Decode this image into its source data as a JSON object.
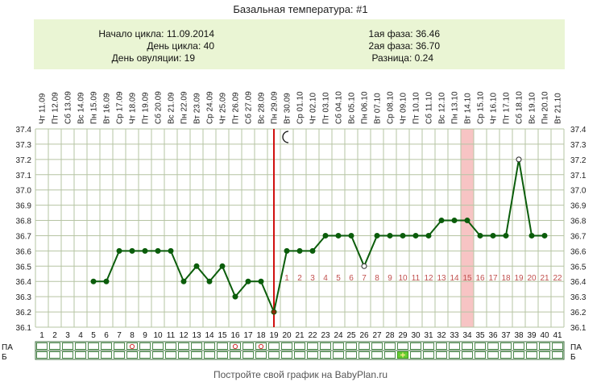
{
  "title": "Базальная температура: #1",
  "info": {
    "cycle_start_label": "Начало цикла: 11.09.2014",
    "cycle_day_label": "День цикла: 40",
    "ovulation_day_label": "День овуляции: 19",
    "phase1_label": "1ая фаза: 36.46",
    "phase2_label": "2ая фаза: 36.70",
    "difference_label": "Разница: 0.24"
  },
  "footer": "Постройте свой график на BabyPlan.ru",
  "row_labels": {
    "pa": "ПА",
    "b": "Б"
  },
  "colors": {
    "line": "#0b5d0b",
    "ovulation_line": "#d01010",
    "highlight": "#f7c4c4",
    "grid": "#b6c4a3",
    "phase2_numbers": "#c0504d",
    "b_mark": "#66cc33"
  },
  "chart_data": {
    "type": "line",
    "title": "Базальная температура: #1",
    "ylim": [
      36.1,
      37.4
    ],
    "y_ticks": [
      "36.1",
      "36.2",
      "36.3",
      "36.4",
      "36.5",
      "36.6",
      "36.7",
      "36.8",
      "36.9",
      "37.0",
      "37.1",
      "37.2",
      "37.3",
      "37.4"
    ],
    "days": [
      1,
      2,
      3,
      4,
      5,
      6,
      7,
      8,
      9,
      10,
      11,
      12,
      13,
      14,
      15,
      16,
      17,
      18,
      19,
      20,
      21,
      22,
      23,
      24,
      25,
      26,
      27,
      28,
      29,
      30,
      31,
      32,
      33,
      34,
      35,
      36,
      37,
      38,
      39,
      40,
      41
    ],
    "dates": [
      "Чт 11.09",
      "Пт 12.09",
      "Сб 13.09",
      "Вс 14.09",
      "Пн 15.09",
      "Вт 16.09",
      "Ср 17.09",
      "Чт 18.09",
      "Пт 19.09",
      "Сб 20.09",
      "Вс 21.09",
      "Пн 22.09",
      "Вт 23.09",
      "Ср 24.09",
      "Чт 25.09",
      "Пт 26.09",
      "Сб 27.09",
      "Вс 28.09",
      "Пн 29.09",
      "Вт 30.09",
      "Ср 01.10",
      "Чт 02.10",
      "Пт 03.10",
      "Сб 04.10",
      "Вс 05.10",
      "Пн 06.10",
      "Вт 07.10",
      "Ср 08.10",
      "Чт 09.10",
      "Пт 10.10",
      "Сб 11.10",
      "Вс 12.10",
      "Пн 13.10",
      "Вт 14.10",
      "Ср 15.10",
      "Чт 16.10",
      "Пт 17.10",
      "Сб 18.10",
      "Вс 19.10",
      "Пн 20.10",
      "Вт 21.10"
    ],
    "temperatures": [
      null,
      null,
      null,
      null,
      36.4,
      36.4,
      36.6,
      36.6,
      36.6,
      36.6,
      36.6,
      36.4,
      36.5,
      36.4,
      36.5,
      36.3,
      36.4,
      36.4,
      36.2,
      36.6,
      36.6,
      36.6,
      36.7,
      36.7,
      36.7,
      36.5,
      36.7,
      36.7,
      36.7,
      36.7,
      36.7,
      36.8,
      36.8,
      36.8,
      36.7,
      36.7,
      36.7,
      37.2,
      36.7,
      36.7,
      null
    ],
    "open_points_days": [
      26,
      38
    ],
    "ovulation_day": 19,
    "highlight_day": 34,
    "moon_day": 20,
    "phase2_numbers": [
      "1",
      "2",
      "3",
      "4",
      "5",
      "6",
      "7",
      "8",
      "9",
      "10",
      "11",
      "12",
      "13",
      "14",
      "15",
      "16",
      "17",
      "18",
      "19",
      "20",
      "21",
      "22"
    ],
    "phase2_start_day": 20,
    "pa_marks_days": [
      8,
      16,
      18
    ],
    "b_marks_days": [
      29
    ],
    "grid": true
  }
}
